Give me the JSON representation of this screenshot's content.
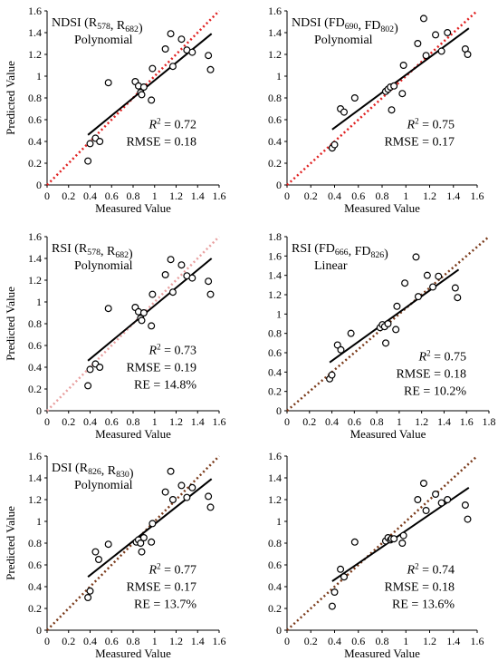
{
  "chart_data": [
    {
      "type": "scatter",
      "title": "NDSI (R578, R682)",
      "method": "Polynomial",
      "xlabel": "Measured Value",
      "ylabel": "Predicted Value",
      "xlim": [
        0,
        1.6
      ],
      "ylim": [
        0,
        1.6
      ],
      "xticks": [
        "0",
        "0.2",
        "0.4",
        "0.6",
        "0.8",
        "1",
        "1.2",
        "1.4",
        "1.6"
      ],
      "yticks": [
        "0",
        "0.2",
        "0.4",
        "0.6",
        "0.8",
        "1",
        "1.2",
        "1.4",
        "1.6"
      ],
      "points": [
        [
          0.38,
          0.22
        ],
        [
          0.4,
          0.38
        ],
        [
          0.45,
          0.43
        ],
        [
          0.49,
          0.4
        ],
        [
          0.57,
          0.94
        ],
        [
          0.82,
          0.95
        ],
        [
          0.85,
          0.91
        ],
        [
          0.87,
          0.85
        ],
        [
          0.88,
          0.83
        ],
        [
          0.9,
          0.9
        ],
        [
          0.97,
          0.78
        ],
        [
          0.98,
          1.07
        ],
        [
          1.1,
          1.25
        ],
        [
          1.15,
          1.39
        ],
        [
          1.17,
          1.09
        ],
        [
          1.25,
          1.34
        ],
        [
          1.3,
          1.24
        ],
        [
          1.35,
          1.22
        ],
        [
          1.5,
          1.19
        ],
        [
          1.52,
          1.06
        ]
      ],
      "fit_line": [
        [
          0.38,
          0.46
        ],
        [
          1.53,
          1.39
        ]
      ],
      "one_to_one_color": "#e02020",
      "stats": {
        "r2": "= 0.72",
        "rmse": "RMSE = 0.18"
      }
    },
    {
      "type": "scatter",
      "title": "NDSI (FD690, FD802)",
      "method": "Polynomial",
      "xlabel": "Measured Value",
      "ylabel": "",
      "xlim": [
        0,
        1.6
      ],
      "ylim": [
        0,
        1.6
      ],
      "xticks": [
        "0",
        "0.2",
        "0.4",
        "0.6",
        "0.8",
        "1",
        "1.2",
        "1.4",
        "1.6"
      ],
      "yticks": [
        "0",
        "0.2",
        "0.4",
        "0.6",
        "0.8",
        "1",
        "1.2",
        "1.4",
        "1.6"
      ],
      "points": [
        [
          0.38,
          0.34
        ],
        [
          0.4,
          0.37
        ],
        [
          0.45,
          0.7
        ],
        [
          0.48,
          0.67
        ],
        [
          0.57,
          0.8
        ],
        [
          0.83,
          0.86
        ],
        [
          0.85,
          0.88
        ],
        [
          0.87,
          0.9
        ],
        [
          0.88,
          0.69
        ],
        [
          0.9,
          0.91
        ],
        [
          0.97,
          0.84
        ],
        [
          0.98,
          1.1
        ],
        [
          1.1,
          1.3
        ],
        [
          1.15,
          1.53
        ],
        [
          1.17,
          1.19
        ],
        [
          1.25,
          1.38
        ],
        [
          1.3,
          1.23
        ],
        [
          1.35,
          1.4
        ],
        [
          1.5,
          1.25
        ],
        [
          1.52,
          1.2
        ]
      ],
      "fit_line": [
        [
          0.38,
          0.51
        ],
        [
          1.53,
          1.44
        ]
      ],
      "one_to_one_color": "#e02020",
      "stats": {
        "r2": "= 0.75",
        "rmse": "RMSE = 0.17"
      }
    },
    {
      "type": "scatter",
      "title": "RSI (R578, R682)",
      "method": "Polynomial",
      "xlabel": "Measured Value",
      "ylabel": "Predicted Value",
      "xlim": [
        0,
        1.6
      ],
      "ylim": [
        0,
        1.6
      ],
      "xticks": [
        "0",
        "0.2",
        "0.4",
        "0.6",
        "0.8",
        "1",
        "1.2",
        "1.4",
        "1.6"
      ],
      "yticks": [
        "0",
        "0.2",
        "0.4",
        "0.6",
        "0.8",
        "1",
        "1.2",
        "1.4",
        "1.6"
      ],
      "points": [
        [
          0.38,
          0.23
        ],
        [
          0.4,
          0.38
        ],
        [
          0.45,
          0.43
        ],
        [
          0.49,
          0.4
        ],
        [
          0.57,
          0.94
        ],
        [
          0.82,
          0.95
        ],
        [
          0.85,
          0.91
        ],
        [
          0.87,
          0.85
        ],
        [
          0.88,
          0.83
        ],
        [
          0.9,
          0.9
        ],
        [
          0.97,
          0.78
        ],
        [
          0.98,
          1.07
        ],
        [
          1.1,
          1.25
        ],
        [
          1.15,
          1.39
        ],
        [
          1.17,
          1.09
        ],
        [
          1.25,
          1.34
        ],
        [
          1.3,
          1.24
        ],
        [
          1.35,
          1.22
        ],
        [
          1.5,
          1.19
        ],
        [
          1.52,
          1.07
        ]
      ],
      "fit_line": [
        [
          0.38,
          0.46
        ],
        [
          1.53,
          1.4
        ]
      ],
      "one_to_one_color": "#e8a0a0",
      "stats": {
        "r2": "= 0.73",
        "rmse": "RMSE = 0.19",
        "re": "RE = 14.8%"
      }
    },
    {
      "type": "scatter",
      "title": "RSI (FD666, FD826)",
      "method": "Linear",
      "xlabel": "Measured Value",
      "ylabel": "",
      "xlim": [
        0,
        1.8
      ],
      "ylim": [
        0,
        1.8
      ],
      "xticks": [
        "0",
        "0.2",
        "0.4",
        "0.6",
        "0.8",
        "1",
        "1.2",
        "1.4",
        "1.6",
        "1.8"
      ],
      "yticks": [
        "0",
        "0.2",
        "0.4",
        "0.6",
        "0.8",
        "1",
        "1.2",
        "1.4",
        "1.6",
        "1.8"
      ],
      "points": [
        [
          0.38,
          0.33
        ],
        [
          0.4,
          0.37
        ],
        [
          0.45,
          0.68
        ],
        [
          0.48,
          0.63
        ],
        [
          0.57,
          0.8
        ],
        [
          0.83,
          0.86
        ],
        [
          0.85,
          0.89
        ],
        [
          0.87,
          0.87
        ],
        [
          0.88,
          0.7
        ],
        [
          0.9,
          0.9
        ],
        [
          0.97,
          0.84
        ],
        [
          0.98,
          1.08
        ],
        [
          1.05,
          1.32
        ],
        [
          1.15,
          1.59
        ],
        [
          1.17,
          1.18
        ],
        [
          1.25,
          1.4
        ],
        [
          1.3,
          1.28
        ],
        [
          1.35,
          1.39
        ],
        [
          1.5,
          1.27
        ],
        [
          1.52,
          1.17
        ]
      ],
      "fit_line": [
        [
          0.38,
          0.5
        ],
        [
          1.53,
          1.46
        ]
      ],
      "one_to_one_color": "#7a3a1a",
      "stats": {
        "r2": "= 0.75",
        "rmse": "RMSE = 0.18",
        "re": "RE = 10.2%"
      }
    },
    {
      "type": "scatter",
      "title": "DSI (R826, R830)",
      "method": "Polynomial",
      "xlabel": "Measured Value",
      "ylabel": "Predicted Value",
      "xlim": [
        0,
        1.6
      ],
      "ylim": [
        0,
        1.6
      ],
      "xticks": [
        "0",
        "0.2",
        "0.4",
        "0.6",
        "0.8",
        "1",
        "1.2",
        "1.4",
        "1.6"
      ],
      "yticks": [
        "0",
        "0.2",
        "0.4",
        "0.6",
        "0.8",
        "1",
        "1.2",
        "1.4",
        "1.6"
      ],
      "points": [
        [
          0.38,
          0.3
        ],
        [
          0.4,
          0.36
        ],
        [
          0.45,
          0.72
        ],
        [
          0.48,
          0.65
        ],
        [
          0.57,
          0.79
        ],
        [
          0.83,
          0.81
        ],
        [
          0.85,
          0.83
        ],
        [
          0.87,
          0.8
        ],
        [
          0.88,
          0.72
        ],
        [
          0.9,
          0.85
        ],
        [
          0.97,
          0.81
        ],
        [
          0.98,
          0.98
        ],
        [
          1.1,
          1.27
        ],
        [
          1.15,
          1.46
        ],
        [
          1.17,
          1.2
        ],
        [
          1.25,
          1.33
        ],
        [
          1.3,
          1.22
        ],
        [
          1.35,
          1.31
        ],
        [
          1.5,
          1.23
        ],
        [
          1.52,
          1.13
        ]
      ],
      "fit_line": [
        [
          0.38,
          0.49
        ],
        [
          1.53,
          1.39
        ]
      ],
      "one_to_one_color": "#7a3a1a",
      "stats": {
        "r2": "= 0.77",
        "rmse": "RMSE = 0.17",
        "re": "RE = 13.7%"
      }
    },
    {
      "type": "scatter",
      "title": "",
      "method": "",
      "xlabel": "Measured Value",
      "ylabel": "",
      "xlim": [
        0,
        1.6
      ],
      "ylim": [
        0,
        1.6
      ],
      "xticks": [
        "0",
        "0.2",
        "0.4",
        "0.6",
        "0.8",
        "1",
        "1.2",
        "1.4",
        "1.6"
      ],
      "yticks": [
        "0",
        "0.2",
        "0.4",
        "0.6",
        "0.8",
        "1",
        "1.2",
        "1.4",
        "1.6"
      ],
      "points": [
        [
          0.38,
          0.22
        ],
        [
          0.4,
          0.35
        ],
        [
          0.45,
          0.56
        ],
        [
          0.48,
          0.49
        ],
        [
          0.57,
          0.81
        ],
        [
          0.83,
          0.82
        ],
        [
          0.85,
          0.85
        ],
        [
          0.87,
          0.83
        ],
        [
          0.88,
          0.84
        ],
        [
          0.9,
          0.84
        ],
        [
          0.97,
          0.8
        ],
        [
          0.98,
          0.87
        ],
        [
          1.1,
          1.2
        ],
        [
          1.15,
          1.35
        ],
        [
          1.17,
          1.1
        ],
        [
          1.25,
          1.25
        ],
        [
          1.3,
          1.17
        ],
        [
          1.35,
          1.2
        ],
        [
          1.5,
          1.15
        ],
        [
          1.52,
          1.02
        ]
      ],
      "fit_line": [
        [
          0.38,
          0.45
        ],
        [
          1.53,
          1.31
        ]
      ],
      "one_to_one_color": "#7a3a1a",
      "stats": {
        "r2": "= 0.74",
        "rmse": "RMSE = 0.18",
        "re": "RE = 13.6%"
      }
    }
  ]
}
